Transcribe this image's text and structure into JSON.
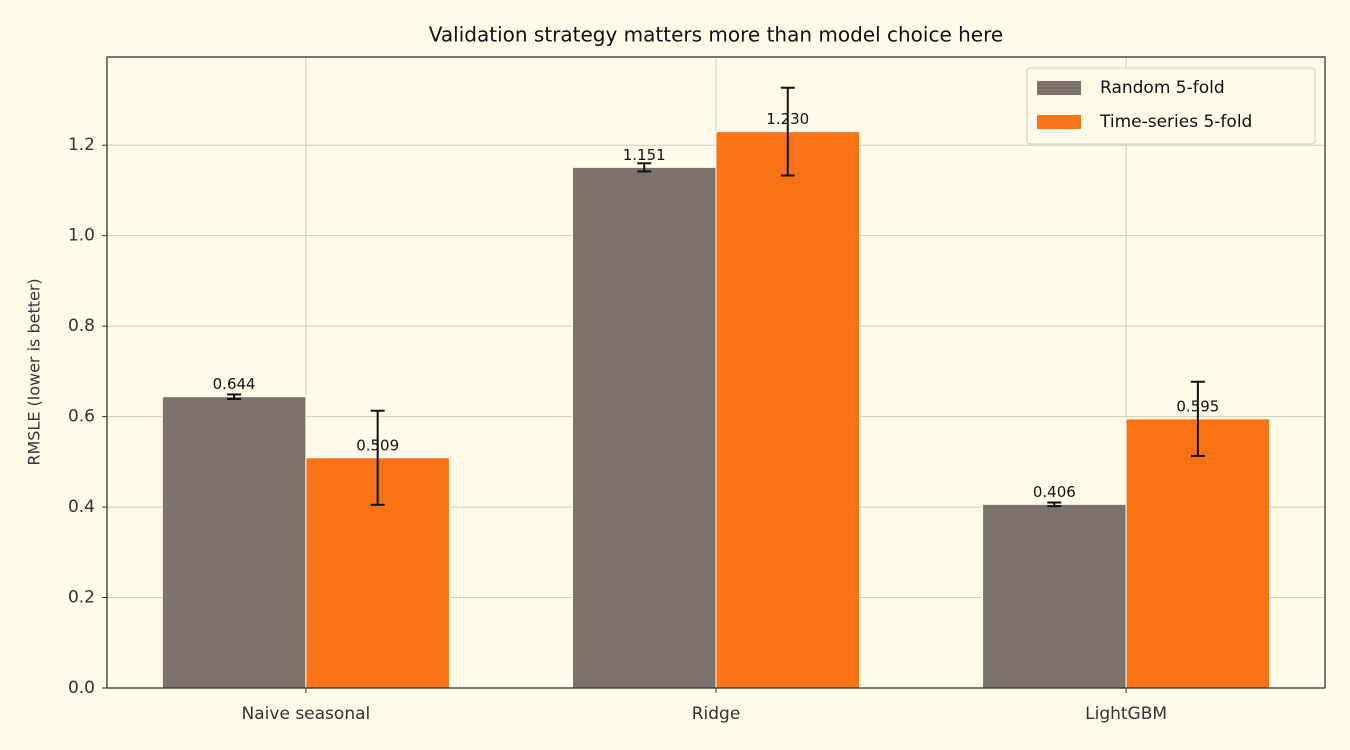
{
  "chart_data": {
    "type": "bar",
    "title": "Validation strategy matters more than model choice here",
    "y_label": "RMSLE (lower is better)",
    "categories": [
      "Naive seasonal",
      "Ridge",
      "LightGBM"
    ],
    "series": [
      {
        "name": "Random 5-fold",
        "color": "#7a736c",
        "values": [
          0.644,
          1.151,
          0.406
        ],
        "value_labels": [
          "0.644",
          "1.151",
          "0.406"
        ],
        "errors": [
          0.005,
          0.009,
          0.004
        ]
      },
      {
        "name": "Time-series 5-fold",
        "color": "#f97316",
        "values": [
          0.509,
          1.23,
          0.595
        ],
        "value_labels": [
          "0.509",
          "1.230",
          "0.595"
        ],
        "errors": [
          0.104,
          0.097,
          0.082
        ]
      }
    ],
    "ylim": [
      0,
      1.395
    ],
    "yticks": [
      {
        "value": 0,
        "label": "0.0"
      },
      0.2,
      0.4,
      0.6,
      0.8,
      {
        "value": 1,
        "label": "1.0"
      },
      1.2
    ],
    "grid": true,
    "legend": "upper-right"
  }
}
